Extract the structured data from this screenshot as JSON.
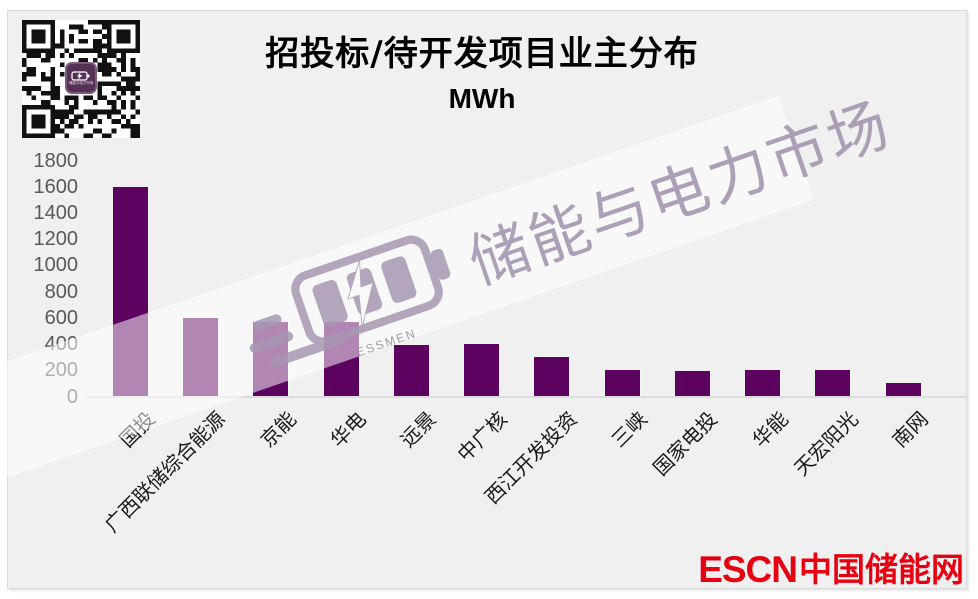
{
  "header": {
    "title": "招投标/待开发项目业主分布",
    "unit_label": "MWh"
  },
  "qr_code": {
    "icon": "qr-code-icon",
    "center_logo_icon": "battery-lightning-icon",
    "center_logo_caption": "储能与电力市场"
  },
  "watermark": {
    "icon": "battery-lightning-icon",
    "brand": "储能与电力市场",
    "brand_sub": "ESSMEN"
  },
  "footer_logo": {
    "en": "ESCN",
    "zh": "中国储能网",
    "color": "#e60012"
  },
  "chart_data": {
    "type": "bar",
    "title": "招投标/待开发项目业主分布",
    "ylabel": "MWh",
    "xlabel": "",
    "categories": [
      "国投",
      "广西联储综合能源",
      "京能",
      "华电",
      "远景",
      "中广核",
      "西江开发投资",
      "三峡",
      "国家电投",
      "华能",
      "天宏阳光",
      "南网"
    ],
    "values": [
      1600,
      600,
      570,
      565,
      395,
      400,
      300,
      205,
      195,
      200,
      200,
      100
    ],
    "ylim": [
      0,
      1800
    ],
    "ytick_interval": 200,
    "yticks": [
      0,
      200,
      400,
      600,
      800,
      1000,
      1200,
      1400,
      1600,
      1800
    ],
    "bar_color": "#5c0360",
    "grid": false,
    "legend": false,
    "category_label_rotation_deg": 45
  },
  "colors": {
    "panel_background": "#f1f0f1",
    "axis_line": "#dcdbdc",
    "ytick_label": "#595959",
    "category_label": "#1a1a1a",
    "bar": "#5c0360",
    "watermark_text": "#a797b2",
    "footer_red": "#e60012"
  }
}
